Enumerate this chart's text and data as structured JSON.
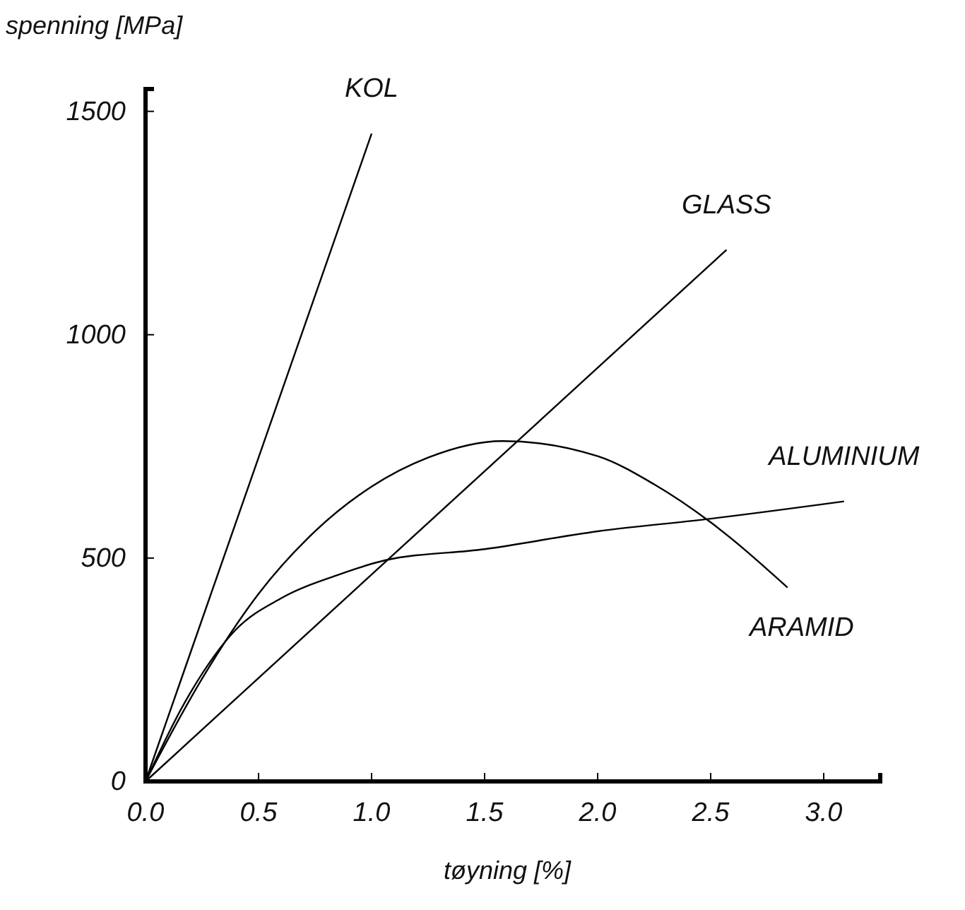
{
  "chart_data": {
    "type": "line",
    "xlabel": "tøyning [%]",
    "ylabel": "spenning [MPa]",
    "xlim": [
      0,
      3.25
    ],
    "ylim": [
      0,
      1550
    ],
    "xticks": [
      {
        "value": 0,
        "label": "0.0"
      },
      {
        "value": 0.5,
        "label": "0.5"
      },
      {
        "value": 1,
        "label": "1.0"
      },
      {
        "value": 1.5,
        "label": "1.5"
      },
      {
        "value": 2,
        "label": "2.0"
      },
      {
        "value": 2.5,
        "label": "2.5"
      },
      {
        "value": 3,
        "label": "3.0"
      }
    ],
    "yticks": [
      0,
      500,
      1000,
      1500
    ],
    "grid": false,
    "legend": false,
    "marker": "none",
    "line_style": "solid",
    "series": [
      {
        "name": "KOL",
        "color": "#000000",
        "x": [
          0,
          1.0
        ],
        "values": [
          0,
          1450
        ]
      },
      {
        "name": "GLASS",
        "color": "#000000",
        "x": [
          0,
          2.57
        ],
        "values": [
          0,
          1190
        ]
      },
      {
        "name": "ALUMINIUM",
        "color": "#000000",
        "x": [
          0,
          0.2,
          0.4,
          0.6,
          0.85,
          1.06,
          1.5,
          2.0,
          2.48,
          3.09
        ],
        "values": [
          0,
          200,
          340,
          410,
          462,
          495,
          520,
          560,
          587,
          627
        ]
      },
      {
        "name": "ARAMID",
        "color": "#000000",
        "x": [
          0,
          0.25,
          0.5,
          0.75,
          1.0,
          1.25,
          1.58,
          2.0,
          2.25,
          2.5,
          2.84
        ],
        "values": [
          0,
          230,
          420,
          560,
          660,
          725,
          762,
          728,
          665,
          580,
          434
        ]
      }
    ]
  }
}
